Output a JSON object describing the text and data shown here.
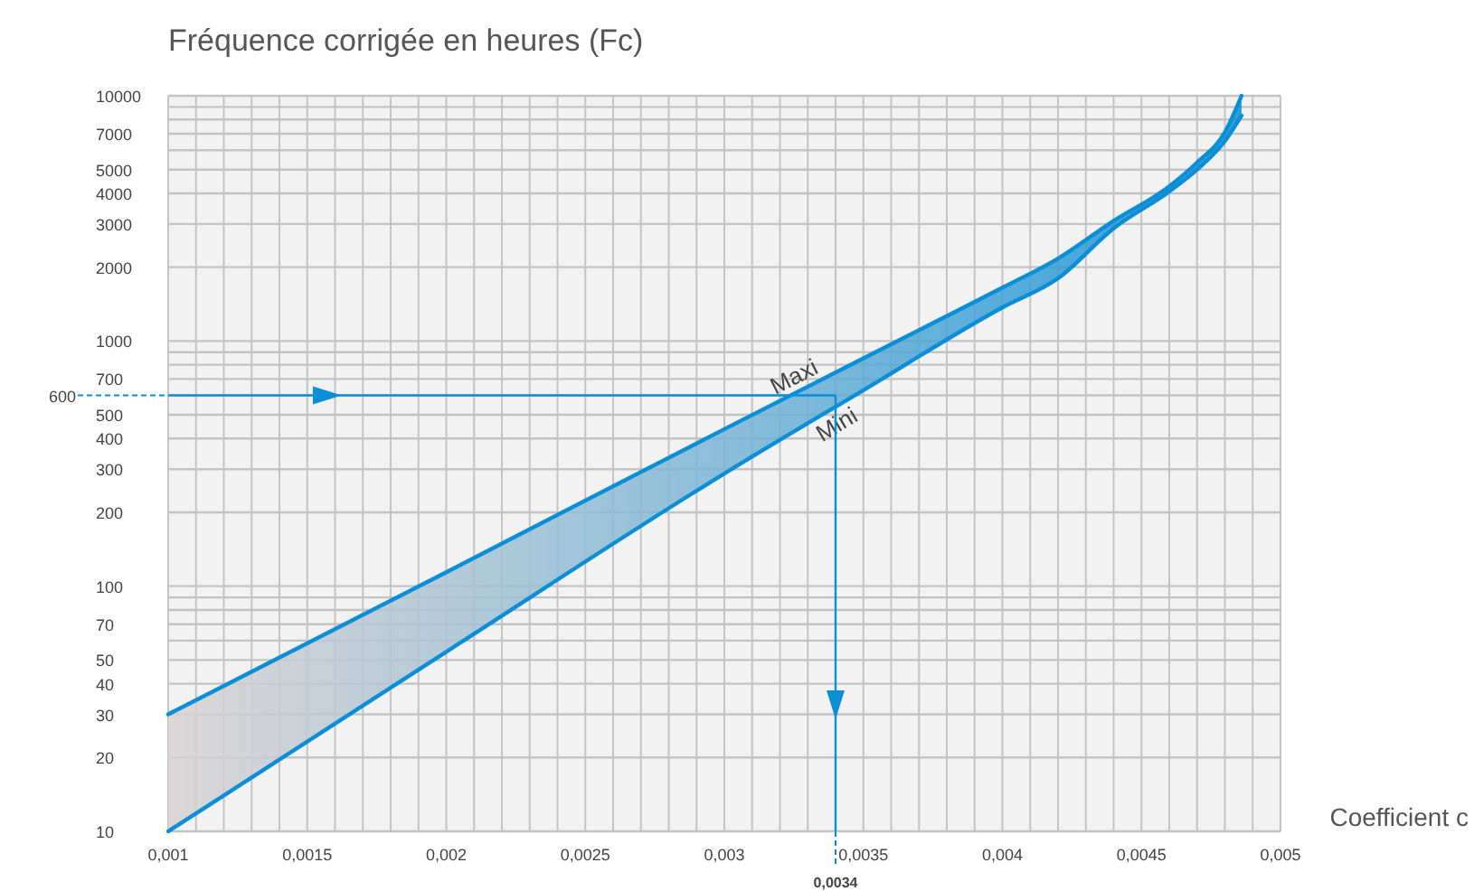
{
  "chart_data": {
    "type": "line",
    "ylabel": "Fréquence corrigée en heures (Fc)",
    "xlabel": "Coefficient c",
    "log": "y",
    "grid": true,
    "marker": "none",
    "line_style": "solid",
    "xlim": [
      0.001,
      0.005
    ],
    "ylim": [
      10,
      10000
    ],
    "x": [
      0.001,
      0.002,
      0.003,
      0.0035,
      0.004,
      0.0042,
      0.0044,
      0.0046,
      0.0047,
      0.0048,
      0.00486
    ],
    "xticks": [
      {
        "value": 0.001,
        "label": "0,001"
      },
      {
        "value": 0.0011,
        "label": null
      },
      {
        "value": 0.0012,
        "label": null
      },
      {
        "value": 0.0013,
        "label": null
      },
      {
        "value": 0.0014,
        "label": null
      },
      {
        "value": 0.0015,
        "label": "0,0015"
      },
      {
        "value": 0.0016,
        "label": null
      },
      {
        "value": 0.0017,
        "label": null
      },
      {
        "value": 0.0018,
        "label": null
      },
      {
        "value": 0.0019,
        "label": null
      },
      {
        "value": 0.002,
        "label": "0,002"
      },
      {
        "value": 0.0021,
        "label": null
      },
      {
        "value": 0.0022,
        "label": null
      },
      {
        "value": 0.0023,
        "label": null
      },
      {
        "value": 0.0024,
        "label": null
      },
      {
        "value": 0.0025,
        "label": "0,0025"
      },
      {
        "value": 0.0026,
        "label": null
      },
      {
        "value": 0.0027,
        "label": null
      },
      {
        "value": 0.0028,
        "label": null
      },
      {
        "value": 0.0029,
        "label": null
      },
      {
        "value": 0.003,
        "label": "0,003"
      },
      {
        "value": 0.0031,
        "label": null
      },
      {
        "value": 0.0032,
        "label": null
      },
      {
        "value": 0.0033,
        "label": null
      },
      {
        "value": 0.0034,
        "label": null
      },
      {
        "value": 0.0035,
        "label": "0,0035"
      },
      {
        "value": 0.0036,
        "label": null
      },
      {
        "value": 0.0037,
        "label": null
      },
      {
        "value": 0.0038,
        "label": null
      },
      {
        "value": 0.0039,
        "label": null
      },
      {
        "value": 0.004,
        "label": "0,004"
      },
      {
        "value": 0.0041,
        "label": null
      },
      {
        "value": 0.0042,
        "label": null
      },
      {
        "value": 0.0043,
        "label": null
      },
      {
        "value": 0.0044,
        "label": null
      },
      {
        "value": 0.0045,
        "label": "0,0045"
      },
      {
        "value": 0.0046,
        "label": null
      },
      {
        "value": 0.0047,
        "label": null
      },
      {
        "value": 0.0048,
        "label": null
      },
      {
        "value": 0.0049,
        "label": null
      },
      {
        "value": 0.005,
        "label": "0,005"
      }
    ],
    "yticks": [
      10,
      20,
      30,
      40,
      50,
      {
        "value": 60,
        "label": null
      },
      70,
      {
        "value": 80,
        "label": null
      },
      {
        "value": 90,
        "label": null
      },
      100,
      200,
      300,
      400,
      500,
      {
        "value": 600,
        "label": null
      },
      700,
      {
        "value": 800,
        "label": null
      },
      {
        "value": 900,
        "label": null
      },
      1000,
      2000,
      3000,
      4000,
      5000,
      {
        "value": 6000,
        "label": null
      },
      7000,
      {
        "value": 8000,
        "label": null
      },
      {
        "value": 9000,
        "label": null
      },
      10000
    ],
    "series": [
      {
        "name": "Maxi",
        "color": "#0a8fd6",
        "values": [
          30,
          114,
          437,
          850,
          1650,
          2170,
          3090,
          4270,
          5350,
          7100,
          10000
        ]
      },
      {
        "name": "Mini",
        "color": "#0a8fd6",
        "values": [
          10,
          54,
          288,
          630,
          1370,
          1800,
          2880,
          4070,
          5000,
          6530,
          8300
        ],
        "lower": [
          10,
          54,
          288,
          630,
          1370,
          1800,
          2880,
          4070,
          5000,
          6530,
          8300
        ],
        "upper": [
          30,
          114,
          437,
          850,
          1650,
          2170,
          3090,
          4270,
          5350,
          7100,
          10000
        ]
      }
    ],
    "ref_lines": [
      {
        "axis": "y",
        "value": 600,
        "label": "600",
        "color": "#0a8fd6"
      },
      {
        "axis": "x",
        "value": 0.0034,
        "label": "0,0034",
        "color": "#0a8fd6"
      }
    ]
  }
}
